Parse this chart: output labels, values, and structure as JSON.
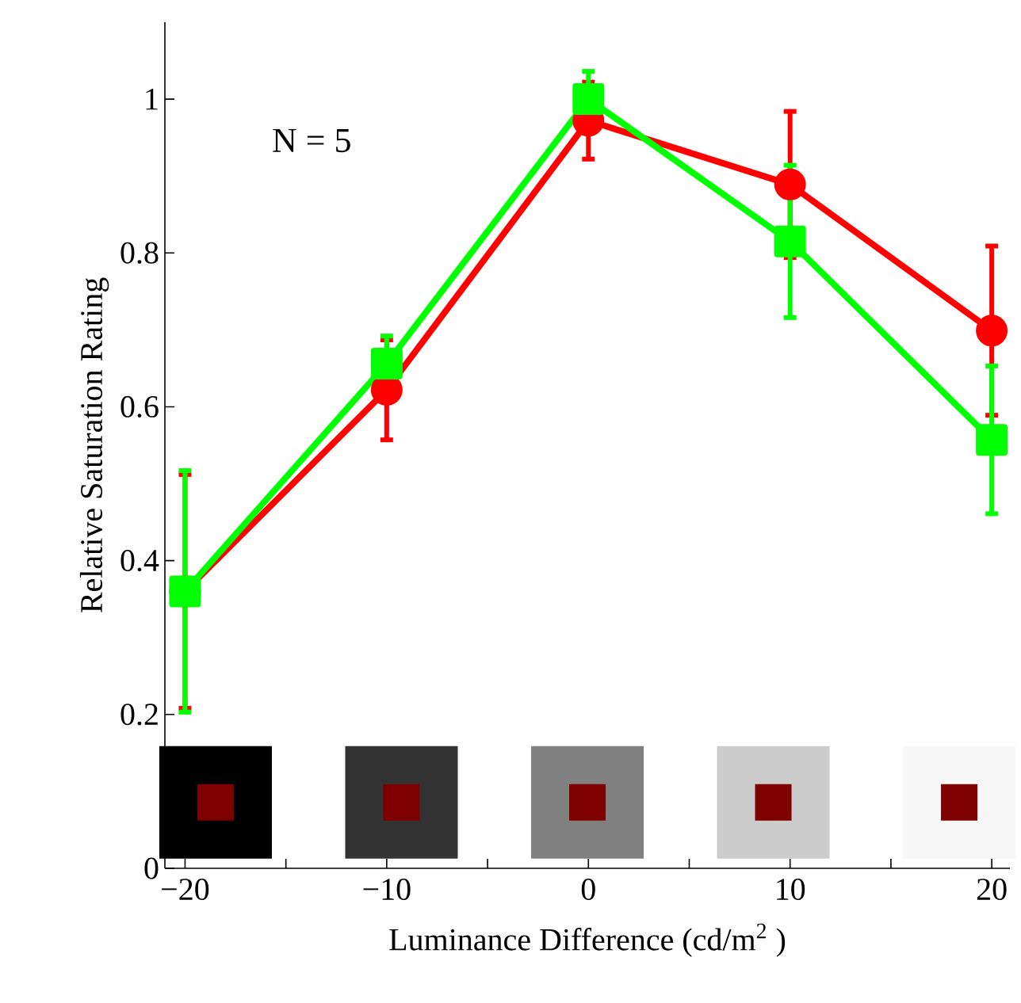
{
  "chart_data": {
    "type": "line",
    "xlabel": "Luminance Difference (cd/m$^{2}$ )",
    "ylabel": "Relative Saturation Rating",
    "annotations": [
      "N = 5"
    ],
    "x": [
      -20,
      -10,
      0,
      10,
      20
    ],
    "series": [
      {
        "color": "#ff0000",
        "marker": "circle",
        "values": [
          0.36,
          0.622,
          0.972,
          0.889,
          0.699
        ],
        "errors": [
          0.152,
          0.065,
          0.05,
          0.095,
          0.11
        ]
      },
      {
        "color": "#00ff00",
        "marker": "square",
        "values": [
          0.36,
          0.656,
          1.0,
          0.815,
          0.557
        ],
        "errors": [
          0.157,
          0.036,
          0.036,
          0.099,
          0.096
        ]
      }
    ],
    "xlim": [
      -21,
      20.9
    ],
    "ylim": [
      0,
      1.1
    ],
    "xticks": [
      {
        "value": -20,
        "label": "−20"
      },
      {
        "value": -15,
        "label": null
      },
      {
        "value": -10,
        "label": "−10"
      },
      {
        "value": -5,
        "label": null
      },
      0,
      {
        "value": 5,
        "label": null
      },
      10,
      {
        "value": 15,
        "label": null
      },
      20
    ],
    "yticks": [
      0,
      0.2,
      0.4,
      0.6,
      0.8,
      1
    ]
  }
}
